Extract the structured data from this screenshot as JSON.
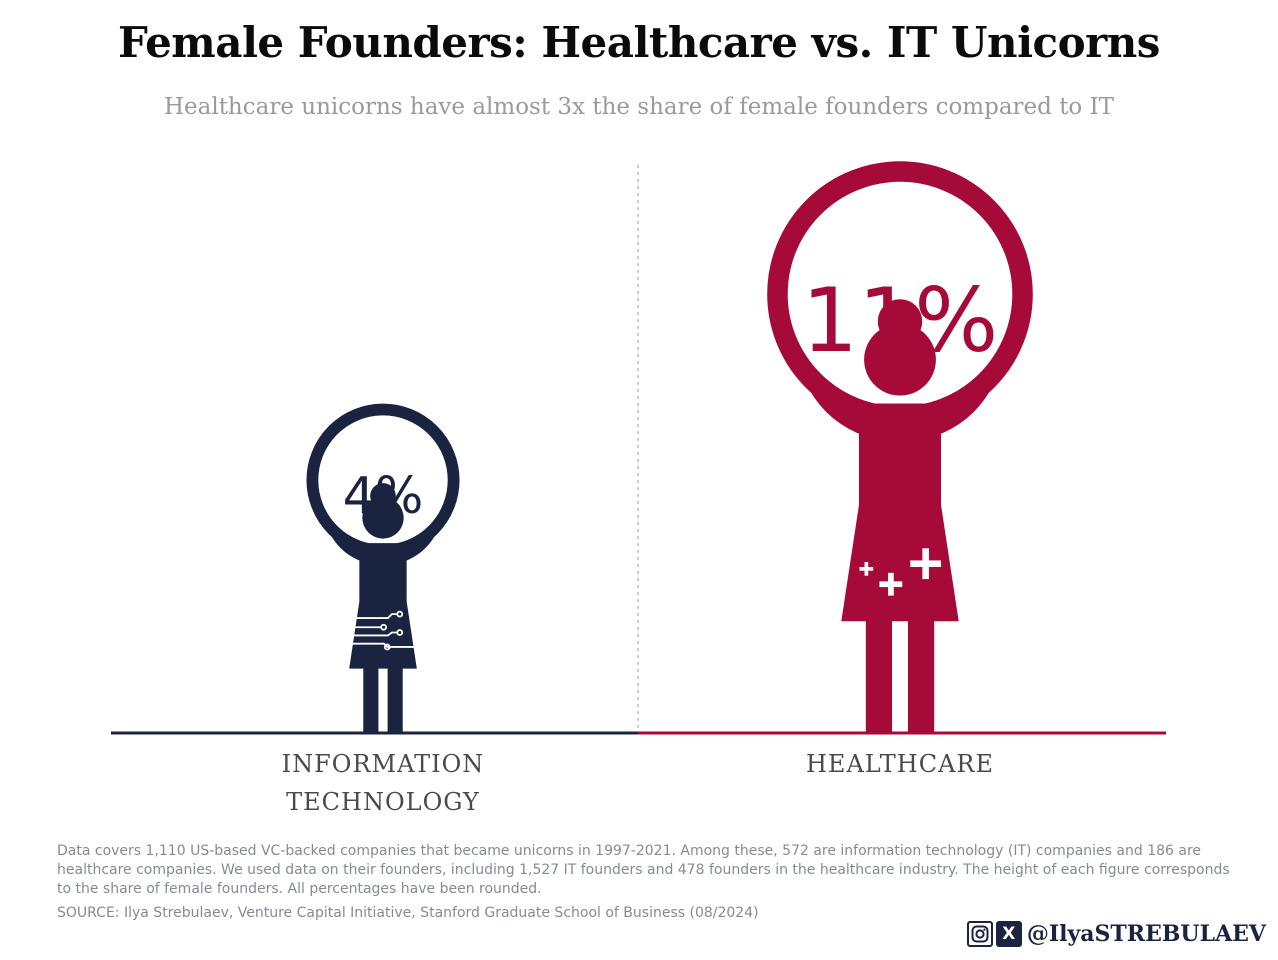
{
  "title": "Female Founders: Healthcare vs. IT Unicorns",
  "subtitle": "Healthcare unicorns have almost 3x the share of female founders compared to IT",
  "chart_data": {
    "type": "bar",
    "categories": [
      "INFORMATION TECHNOLOGY",
      "HEALTHCARE"
    ],
    "category_lines": [
      [
        "INFORMATION",
        "TECHNOLOGY"
      ],
      [
        "HEALTHCARE"
      ]
    ],
    "values": [
      4,
      11
    ],
    "value_labels": [
      "4%",
      "11%"
    ],
    "unit": "%",
    "colors": [
      "#1a2440",
      "#a50a38"
    ],
    "icons": [
      "circuit-icon",
      "medical-cross-icon"
    ]
  },
  "footnote": "Data covers 1,110 US-based VC-backed companies that became unicorns in 1997-2021. Among these, 572 are information technology (IT) companies and 186 are healthcare companies. We used data on their founders, including 1,527 IT founders and 478 founders in the healthcare industry. The height of each figure corresponds to the share of female founders. All percentages have been rounded.",
  "source": "SOURCE: Ilya Strebulaev, Venture Capital Initiative, Stanford Graduate School of Business (08/2024)",
  "social": {
    "icons": [
      "instagram-icon",
      "x-icon"
    ],
    "x_glyph": "X",
    "handle": "@IlyaSTREBULAEV"
  }
}
